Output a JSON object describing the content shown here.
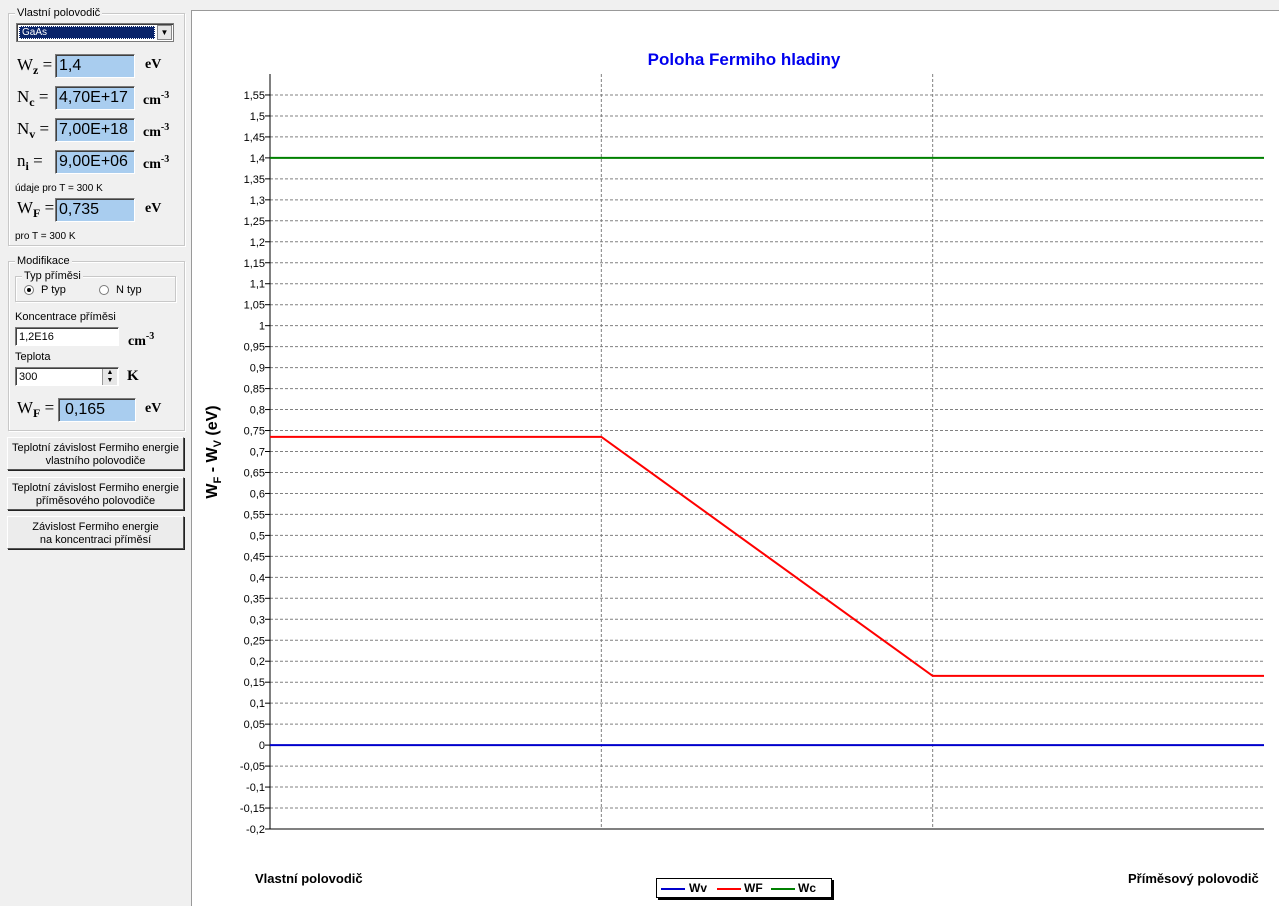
{
  "intrinsic": {
    "group_title": "Vlastní polovodič",
    "material_selected": "GaAs",
    "wz": {
      "sym": "W",
      "sub": "z",
      "eq": " =",
      "value": "1,4",
      "unit": "eV"
    },
    "nc": {
      "sym": "N",
      "sub": "c",
      "eq": " =",
      "value": "4,70E+17",
      "unit": "cm",
      "unit_exp": "-3"
    },
    "nv": {
      "sym": "N",
      "sub": "v",
      "eq": " =",
      "value": "7,00E+18",
      "unit": "cm",
      "unit_exp": "-3"
    },
    "ni": {
      "sym": "n",
      "sub": "i",
      "eq": " =",
      "value": "9,00E+06",
      "unit": "cm",
      "unit_exp": "-3"
    },
    "note1": "údaje pro T = 300 K",
    "wf": {
      "sym": "W",
      "sub": "F",
      "eq": " =",
      "value": "0,735",
      "unit": "eV"
    },
    "note2": "pro T = 300 K"
  },
  "modification": {
    "group_title": "Modifikace",
    "dopant_type_title": "Typ příměsi",
    "p_type_label": "P typ",
    "n_type_label": "N typ",
    "p_type_selected": true,
    "concentration_label": "Koncentrace příměsi",
    "concentration_value": "1,2E16",
    "concentration_unit": "cm",
    "concentration_unit_exp": "-3",
    "temperature_label": "Teplota",
    "temperature_value": "300",
    "temperature_unit": "K",
    "wf": {
      "sym": "W",
      "sub": "F",
      "eq": " =",
      "value": "0,165",
      "unit": "eV"
    }
  },
  "buttons": {
    "temp_intrinsic_l1": "Teplotní závislost Fermiho energie",
    "temp_intrinsic_l2": "vlastního polovodiče",
    "temp_extrinsic_l1": "Teplotní závislost Fermiho energie",
    "temp_extrinsic_l2": "příměsového polovodiče",
    "conc_l1": "Závislost Fermiho energie",
    "conc_l2": "na koncentraci příměsí"
  },
  "chart_data": {
    "type": "line",
    "title": "Poloha Fermiho hladiny",
    "ylabel_main": "W",
    "ylabel_sub1": "F",
    "ylabel_mid": " - W",
    "ylabel_sub2": "V",
    "ylabel_unit": " (eV)",
    "ylim": [
      -0.2,
      1.6
    ],
    "y_step": 0.05,
    "y_ticks": [
      "1,55",
      "1,5",
      "1,45",
      "1,4",
      "1,35",
      "1,3",
      "1,25",
      "1,2",
      "1,15",
      "1,1",
      "1,05",
      "1",
      "0,95",
      "0,9",
      "0,85",
      "0,8",
      "0,75",
      "0,7",
      "0,65",
      "0,6",
      "0,55",
      "0,5",
      "0,45",
      "0,4",
      "0,35",
      "0,3",
      "0,25",
      "0,2",
      "0,15",
      "0,1",
      "0,05",
      "0",
      "-0,05",
      "-0,1",
      "-0,15",
      "-0,2"
    ],
    "x_left_label": "Vlastní polovodič",
    "x_right_label": "Příměsový polovodič",
    "xlim": [
      0,
      3
    ],
    "grid": true,
    "legend_position": "bottom-center",
    "series": [
      {
        "name": "Wv",
        "color": "#0000cc",
        "x": [
          0,
          3
        ],
        "y": [
          0,
          0
        ]
      },
      {
        "name": "WF",
        "color": "#ff0000",
        "x": [
          0,
          1,
          2,
          3
        ],
        "y": [
          0.735,
          0.735,
          0.165,
          0.165
        ]
      },
      {
        "name": "Wc",
        "color": "#008000",
        "x": [
          0,
          3
        ],
        "y": [
          1.4,
          1.4
        ]
      }
    ]
  }
}
